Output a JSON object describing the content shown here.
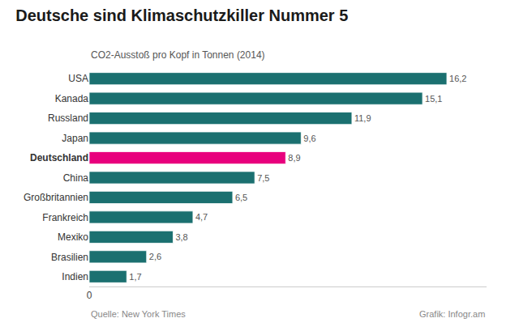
{
  "chart_data": {
    "type": "bar",
    "orientation": "horizontal",
    "title": "Deutsche sind Klimaschutzkiller Nummer 5",
    "subtitle": "CO2-Ausstoß pro Kopf in Tonnen (2014)",
    "annotations": [
      "Quelle: New York Times",
      "Grafik: Infogr.am"
    ],
    "categories": [
      "USA",
      "Kanada",
      "Russland",
      "Japan",
      "Deutschland",
      "China",
      "Großbritannien",
      "Frankreich",
      "Mexiko",
      "Brasilien",
      "Indien"
    ],
    "values": [
      16.2,
      15.1,
      11.9,
      9.6,
      8.9,
      7.5,
      6.5,
      4.7,
      3.8,
      2.6,
      1.7
    ],
    "value_labels": [
      "16,2",
      "15,1",
      "11,9",
      "9,6",
      "8,9",
      "7,5",
      "6,5",
      "4,7",
      "3,8",
      "2,6",
      "1,7"
    ],
    "data_labels": true,
    "colors": [
      "#1b7070",
      "#1b7070",
      "#1b7070",
      "#1b7070",
      "#e8007d",
      "#1b7070",
      "#1b7070",
      "#1b7070",
      "#1b7070",
      "#1b7070",
      "#1b7070"
    ],
    "xlim": [
      0,
      18
    ],
    "xticks": [
      0
    ],
    "grid": false
  }
}
